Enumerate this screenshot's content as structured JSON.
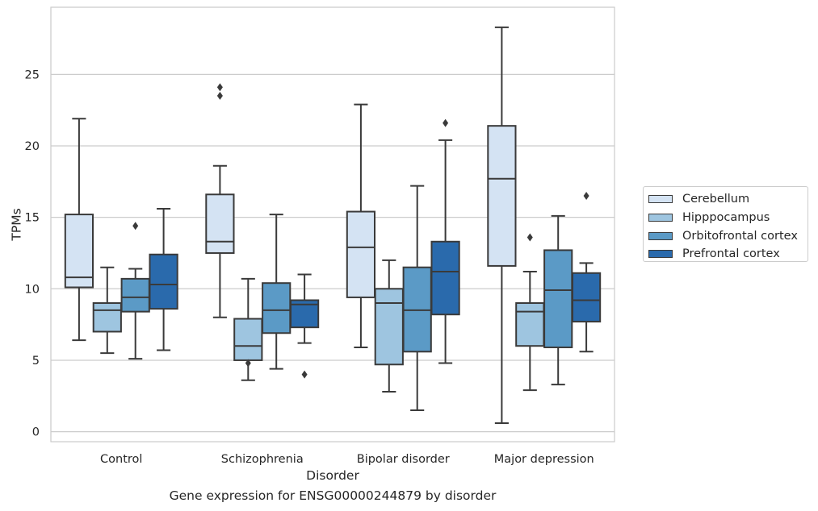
{
  "caption": "Gene expression for ENSG00000244879 by disorder",
  "chart_data": {
    "type": "boxplot",
    "xlabel": "Disorder",
    "ylabel": "TPMs",
    "categories": [
      "Control",
      "Schizophrenia",
      "Bipolar disorder",
      "Major depression"
    ],
    "ylim": [
      -0.7,
      29.7
    ],
    "yticks": [
      0,
      5,
      10,
      15,
      20,
      25
    ],
    "grid": true,
    "legend_position": "right",
    "series": [
      {
        "name": "Cerebellum",
        "color": "#d4e3f3",
        "boxes": [
          {
            "whisker_low": 6.4,
            "q1": 10.1,
            "median": 10.8,
            "q3": 15.2,
            "whisker_high": 21.9,
            "outliers": []
          },
          {
            "whisker_low": 8.0,
            "q1": 12.5,
            "median": 13.3,
            "q3": 16.6,
            "whisker_high": 18.6,
            "outliers": [
              24.1,
              23.5
            ]
          },
          {
            "whisker_low": 5.9,
            "q1": 9.4,
            "median": 12.9,
            "q3": 15.4,
            "whisker_high": 22.9,
            "outliers": []
          },
          {
            "whisker_low": 0.6,
            "q1": 11.6,
            "median": 17.7,
            "q3": 21.4,
            "whisker_high": 28.3,
            "outliers": []
          }
        ]
      },
      {
        "name": "Hipppocampus",
        "color": "#9ec5e0",
        "boxes": [
          {
            "whisker_low": 5.5,
            "q1": 7.0,
            "median": 8.5,
            "q3": 9.0,
            "whisker_high": 11.5,
            "outliers": []
          },
          {
            "whisker_low": 3.6,
            "q1": 5.0,
            "median": 6.0,
            "q3": 7.9,
            "whisker_high": 10.7,
            "outliers": [
              4.8
            ]
          },
          {
            "whisker_low": 2.8,
            "q1": 4.7,
            "median": 9.0,
            "q3": 10.0,
            "whisker_high": 12.0,
            "outliers": []
          },
          {
            "whisker_low": 2.9,
            "q1": 6.0,
            "median": 8.4,
            "q3": 9.0,
            "whisker_high": 11.2,
            "outliers": [
              13.6
            ]
          }
        ]
      },
      {
        "name": "Orbitofrontal cortex",
        "color": "#5b9ac6",
        "boxes": [
          {
            "whisker_low": 5.1,
            "q1": 8.4,
            "median": 9.4,
            "q3": 10.7,
            "whisker_high": 11.4,
            "outliers": [
              14.4
            ]
          },
          {
            "whisker_low": 4.4,
            "q1": 6.9,
            "median": 8.5,
            "q3": 10.4,
            "whisker_high": 15.2,
            "outliers": []
          },
          {
            "whisker_low": 1.5,
            "q1": 5.6,
            "median": 8.5,
            "q3": 11.5,
            "whisker_high": 17.2,
            "outliers": []
          },
          {
            "whisker_low": 3.3,
            "q1": 5.9,
            "median": 9.9,
            "q3": 12.7,
            "whisker_high": 15.1,
            "outliers": []
          }
        ]
      },
      {
        "name": "Prefrontal cortex",
        "color": "#2a6aac",
        "boxes": [
          {
            "whisker_low": 5.7,
            "q1": 8.6,
            "median": 10.3,
            "q3": 12.4,
            "whisker_high": 15.6,
            "outliers": []
          },
          {
            "whisker_low": 6.2,
            "q1": 7.3,
            "median": 8.9,
            "q3": 9.2,
            "whisker_high": 11.0,
            "outliers": [
              4.0
            ]
          },
          {
            "whisker_low": 4.8,
            "q1": 8.2,
            "median": 11.2,
            "q3": 13.3,
            "whisker_high": 20.4,
            "outliers": [
              21.6
            ]
          },
          {
            "whisker_low": 5.6,
            "q1": 7.7,
            "median": 9.2,
            "q3": 11.1,
            "whisker_high": 11.8,
            "outliers": [
              16.5
            ]
          }
        ]
      }
    ]
  }
}
